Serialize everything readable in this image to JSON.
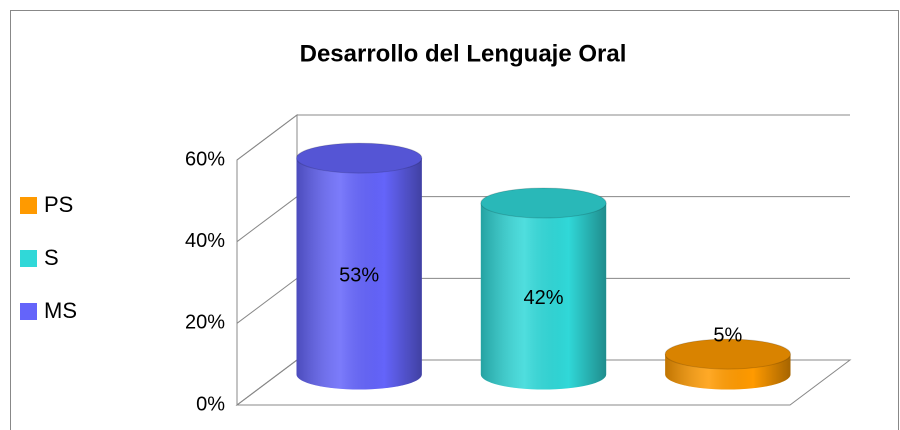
{
  "chart_data": {
    "type": "bar3d",
    "title": "Desarrollo del Lenguaje Oral",
    "categories": [
      "MS",
      "S",
      "PS"
    ],
    "values": [
      53,
      42,
      5
    ],
    "value_labels": [
      "53%",
      "42%",
      "5%"
    ],
    "colors": [
      "#6464fa",
      "#30d8d8",
      "#ff9a00"
    ],
    "ylim": [
      0,
      60
    ],
    "yticks": [
      {
        "value": 0,
        "label": "0%"
      },
      {
        "value": 20,
        "label": "20%"
      },
      {
        "value": 40,
        "label": "40%"
      },
      {
        "value": 60,
        "label": "60%"
      }
    ],
    "grid": true,
    "legend": "left"
  }
}
